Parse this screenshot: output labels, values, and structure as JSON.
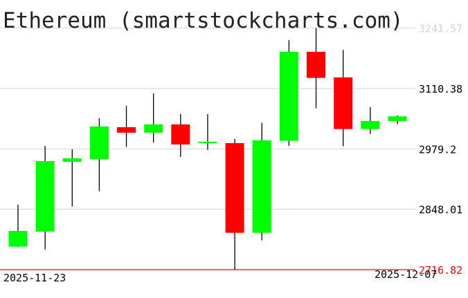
{
  "chart_data": {
    "type": "candlestick",
    "title": "Ethereum (smartstockcharts.com)",
    "x_tick_labels": [
      "2025-11-23",
      "2025-12-07"
    ],
    "y_tick_labels": [
      "3241.57",
      "3110.38",
      "2979.2",
      "2848.01",
      "2716.82"
    ],
    "ylim": [
      2716.82,
      3241.57
    ],
    "grid": true,
    "min_line": 2716.82,
    "candles": [
      {
        "date": "2025-11-23",
        "open": 2766.9,
        "high": 2858.1,
        "low": 2765.9,
        "close": 2801.0
      },
      {
        "date": "2025-11-24",
        "open": 2799.5,
        "high": 2985.8,
        "low": 2760.8,
        "close": 2952.7
      },
      {
        "date": "2025-11-25",
        "open": 2951.2,
        "high": 2978.3,
        "low": 2854.0,
        "close": 2958.7
      },
      {
        "date": "2025-11-26",
        "open": 2957.2,
        "high": 3045.9,
        "low": 2887.1,
        "close": 3027.9
      },
      {
        "date": "2025-11-27",
        "open": 3026.4,
        "high": 3073.0,
        "low": 2983.2,
        "close": 3014.4
      },
      {
        "date": "2025-11-28",
        "open": 3014.4,
        "high": 3100.0,
        "low": 2993.3,
        "close": 3032.4
      },
      {
        "date": "2025-11-29",
        "open": 3032.4,
        "high": 3054.9,
        "low": 2961.8,
        "close": 2988.8
      },
      {
        "date": "2025-11-30",
        "open": 2991.8,
        "high": 3054.9,
        "low": 2977.2,
        "close": 2994.8
      },
      {
        "date": "2025-12-01",
        "open": 2991.8,
        "high": 3000.8,
        "low": 2716.82,
        "close": 2796.9
      },
      {
        "date": "2025-12-02",
        "open": 2796.9,
        "high": 3035.8,
        "low": 2780.4,
        "close": 2997.8
      },
      {
        "date": "2025-12-03",
        "open": 2996.8,
        "high": 3215.3,
        "low": 2985.8,
        "close": 3190.2
      },
      {
        "date": "2025-12-04",
        "open": 3190.2,
        "high": 3241.57,
        "low": 3067.4,
        "close": 3133.5
      },
      {
        "date": "2025-12-05",
        "open": 3134.6,
        "high": 3194.2,
        "low": 2984.8,
        "close": 3022.3
      },
      {
        "date": "2025-12-06",
        "open": 3022.3,
        "high": 3069.9,
        "low": 3011.8,
        "close": 3039.9
      },
      {
        "date": "2025-12-07",
        "open": 3039.9,
        "high": 3051.9,
        "low": 3032.9,
        "close": 3049.9
      }
    ],
    "colors": {
      "up": "#00ff00",
      "down": "#ff0000",
      "wick": "#000000",
      "grid": "#d3d3d3",
      "min_line": "#ff0000",
      "max_label": "#d3d3d3"
    }
  }
}
